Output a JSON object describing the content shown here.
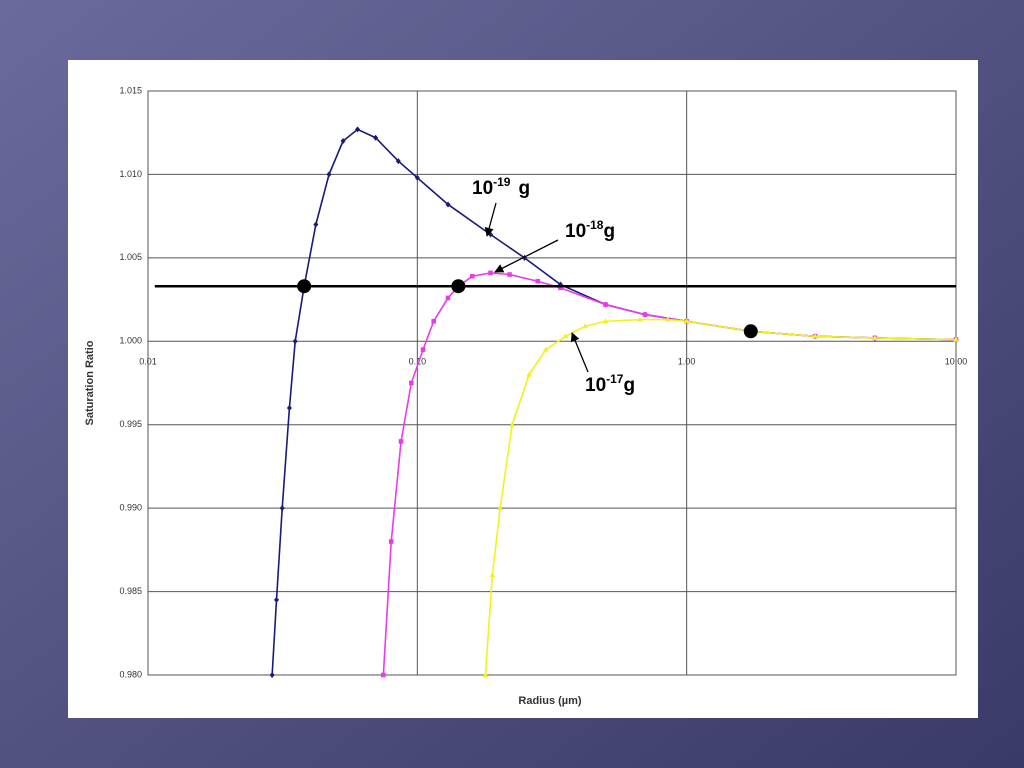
{
  "chart_data": {
    "type": "line",
    "x_label": "Radius (µm)",
    "y_label": "Saturation Ratio",
    "log_x": true,
    "grid": true,
    "xlim": [
      0.01,
      10
    ],
    "xticks": [
      {
        "value": 0.01,
        "label": "0.01"
      },
      {
        "value": 0.1,
        "label": "0.10"
      },
      {
        "value": 1,
        "label": "1.00"
      },
      {
        "value": 10,
        "label": "10.00"
      }
    ],
    "ylim": [
      0.98,
      1.015
    ],
    "yticks": [
      {
        "value": 0.98,
        "label": "0.980"
      },
      0.985,
      {
        "value": 0.99,
        "label": "0.990"
      },
      0.995,
      {
        "value": 1,
        "label": "1.000"
      },
      1.005,
      {
        "value": 1.01,
        "label": "1.010"
      },
      1.015
    ],
    "series": [
      {
        "color": "#1a1a7a",
        "marker": "diamond",
        "label": {
          "base": "10",
          "exponent": "-19",
          "unit": "g"
        },
        "x": [
          0.0289,
          0.03,
          0.0315,
          0.0335,
          0.0352,
          0.038,
          0.042,
          0.047,
          0.053,
          0.06,
          0.07,
          0.085,
          0.1,
          0.13,
          0.187,
          0.25,
          0.34,
          0.5,
          0.7,
          1,
          1.73,
          3,
          5,
          10
        ],
        "values": [
          0.98,
          0.9845,
          0.99,
          0.996,
          1.0,
          1.0033,
          1.007,
          1.01,
          1.012,
          1.0127,
          1.0122,
          1.0108,
          1.0098,
          1.0082,
          1.0064,
          1.005,
          1.0034,
          1.0022,
          1.0016,
          1.0012,
          1.0006,
          1.0003,
          1.0002,
          1.0001
        ]
      },
      {
        "color": "#e83ce8",
        "marker": "square",
        "label": {
          "base": "10",
          "exponent": "-18",
          "unit": "g"
        },
        "x": [
          0.0748,
          0.08,
          0.087,
          0.095,
          0.105,
          0.115,
          0.13,
          0.142,
          0.16,
          0.187,
          0.22,
          0.28,
          0.34,
          0.5,
          0.7,
          1,
          1.73,
          3,
          5,
          10
        ],
        "values": [
          0.98,
          0.988,
          0.994,
          0.9975,
          0.9995,
          1.0012,
          1.0026,
          1.0033,
          1.0039,
          1.0041,
          1.004,
          1.0036,
          1.0032,
          1.0022,
          1.0016,
          1.0012,
          1.0006,
          1.0003,
          1.0002,
          1.0001
        ]
      },
      {
        "color": "#f2f21a",
        "marker": "triangle",
        "label": {
          "base": "10",
          "exponent": "-17",
          "unit": "g"
        },
        "x": [
          0.179,
          0.19,
          0.203,
          0.225,
          0.26,
          0.3,
          0.355,
          0.42,
          0.5,
          0.67,
          0.85,
          1,
          1.73,
          3,
          5,
          10
        ],
        "values": [
          0.98,
          0.986,
          0.99,
          0.995,
          0.998,
          0.9995,
          1.0003,
          1.0009,
          1.0012,
          1.0013,
          1.0013,
          1.0012,
          1.0006,
          1.0003,
          1.0002,
          1.0001
        ]
      }
    ],
    "hline": {
      "y": 1.0033,
      "x": [
        0.0106,
        10
      ]
    },
    "points": {
      "x": [
        0.038,
        0.142,
        1.73
      ],
      "values": [
        1.0033,
        1.0033,
        1.0006
      ]
    }
  }
}
